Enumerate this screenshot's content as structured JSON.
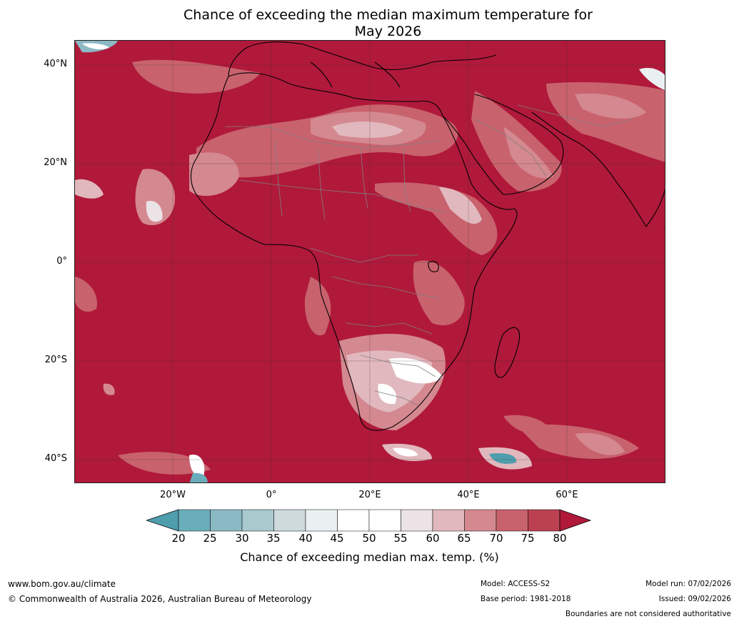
{
  "title_line1": "Chance of exceeding the median maximum temperature for",
  "title_line2": "May 2026",
  "lat_labels": [
    "40°N",
    "20°N",
    "0°",
    "20°S",
    "40°S"
  ],
  "lon_labels": [
    "20°W",
    "0°",
    "20°E",
    "40°E",
    "60°E"
  ],
  "colorbar": {
    "ticks": [
      "20",
      "25",
      "30",
      "35",
      "40",
      "45",
      "50",
      "55",
      "60",
      "65",
      "70",
      "75",
      "80"
    ],
    "colors": [
      "#4f9eae",
      "#6aaebb",
      "#8bb9c4",
      "#a8c9cd",
      "#cfdadc",
      "#eaf0f2",
      "#ffffff",
      "#ffffff",
      "#ebe3e5",
      "#e1b8be",
      "#d4888f",
      "#c8626d",
      "#bb4150",
      "#b0193a"
    ],
    "label": "Chance of exceeding median max. temp. (%)"
  },
  "colors": {
    "dominant_fill": "#b0193a",
    "land_outline": "#000000",
    "border": "#808080",
    "grid": "#333333"
  },
  "footer": {
    "url": "www.bom.gov.au/climate",
    "copyright": "© Commonwealth of Australia 2026, Australian Bureau of Meteorology",
    "model": "Model: ACCESS-S2",
    "base_period": "Base period: 1981-2018",
    "model_run": "Model run: 07/02/2026",
    "issued": "Issued: 09/02/2026",
    "disclaimer": "Boundaries are not considered authoritative"
  }
}
